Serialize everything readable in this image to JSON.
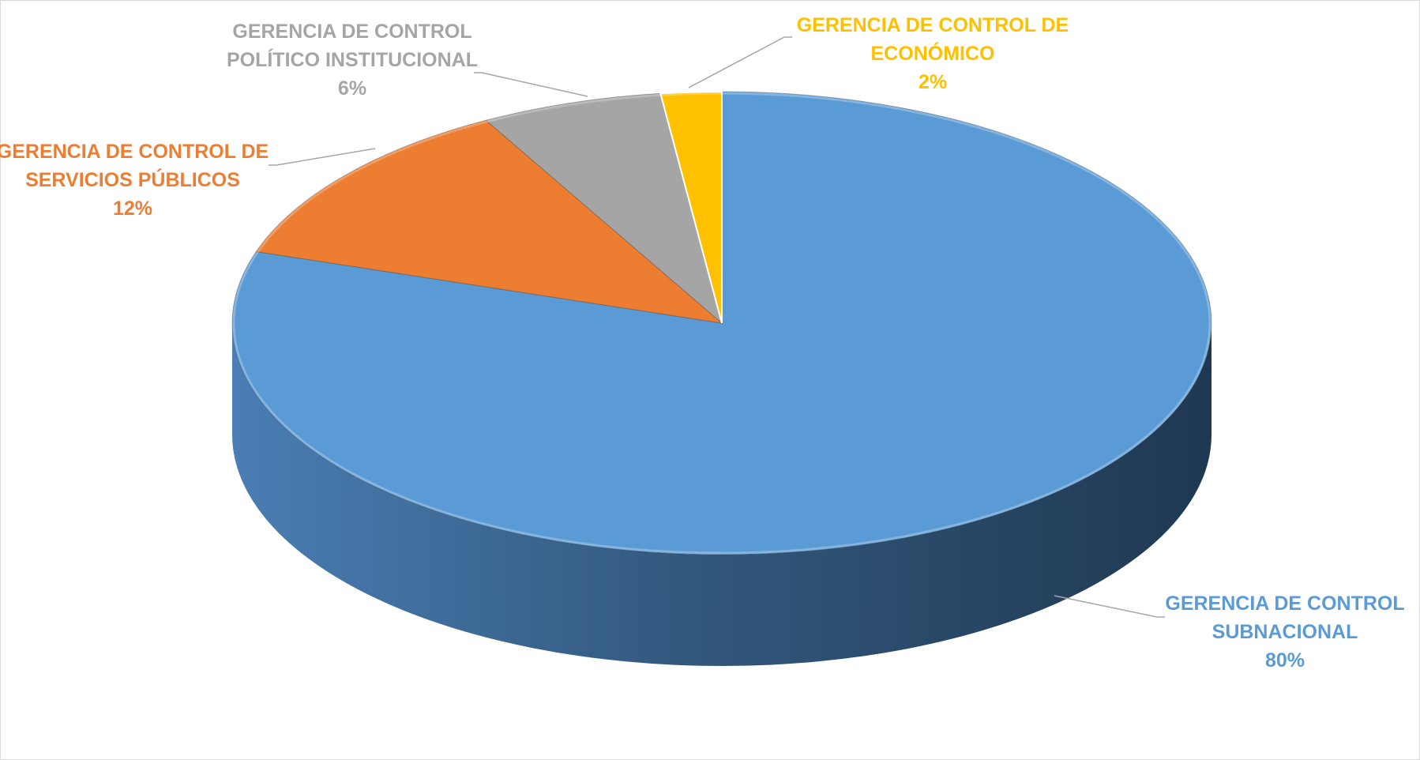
{
  "chart_data": {
    "type": "pie",
    "style": "3d-pie",
    "title": "",
    "legend": "none",
    "slices": [
      {
        "label_lines": [
          "GERENCIA DE CONTROL",
          "SUBNACIONAL"
        ],
        "value": 80,
        "value_label": "80%",
        "color": "#5B9BD5",
        "label_color": "#5B9BD5"
      },
      {
        "label_lines": [
          "GERENCIA DE CONTROL DE",
          "SERVICIOS PÚBLICOS"
        ],
        "value": 12,
        "value_label": "12%",
        "color": "#ED7D31",
        "label_color": "#ED7D31"
      },
      {
        "label_lines": [
          "GERENCIA DE CONTROL",
          "POLÍTICO INSTITUCIONAL"
        ],
        "value": 6,
        "value_label": "6%",
        "color": "#A5A5A5",
        "label_color": "#A5A5A5"
      },
      {
        "label_lines": [
          "GERENCIA DE CONTROL DE",
          "ECONÓMICO"
        ],
        "value": 2,
        "value_label": "2%",
        "color": "#FFC000",
        "label_color": "#FFC000"
      }
    ]
  }
}
